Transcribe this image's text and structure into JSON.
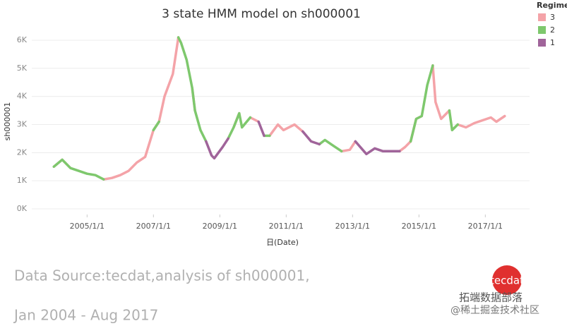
{
  "chart_data": {
    "type": "line",
    "title": "3 state HMM model on sh000001",
    "x_label": "日(Date)",
    "y_label": "sh000001",
    "legend_title": "Regime",
    "legend_position": "top-right",
    "grid": true,
    "x": [
      "2004/1/1",
      "2004/4/1",
      "2004/7/1",
      "2004/10/1",
      "2005/1/1",
      "2005/4/1",
      "2005/7/1",
      "2005/10/1",
      "2006/1/1",
      "2006/4/1",
      "2006/7/1",
      "2006/10/1",
      "2007/1/1",
      "2007/3/1",
      "2007/5/1",
      "2007/8/1",
      "2007/10/1",
      "2007/11/1",
      "2008/1/1",
      "2008/3/1",
      "2008/4/1",
      "2008/6/1",
      "2008/8/1",
      "2008/10/1",
      "2008/11/1",
      "2009/2/1",
      "2009/4/1",
      "2009/6/1",
      "2009/8/1",
      "2009/9/1",
      "2009/12/1",
      "2010/3/1",
      "2010/5/1",
      "2010/7/1",
      "2010/10/1",
      "2010/12/1",
      "2011/4/1",
      "2011/7/1",
      "2011/10/1",
      "2012/1/1",
      "2012/3/1",
      "2012/6/1",
      "2012/9/1",
      "2012/12/1",
      "2013/2/1",
      "2013/6/1",
      "2013/9/1",
      "2013/12/1",
      "2014/3/1",
      "2014/6/1",
      "2014/8/1",
      "2014/10/1",
      "2014/12/1",
      "2015/2/1",
      "2015/4/1",
      "2015/6/1",
      "2015/7/1",
      "2015/9/1",
      "2015/12/1",
      "2016/1/1",
      "2016/3/1",
      "2016/6/1",
      "2016/9/1",
      "2016/12/1",
      "2017/3/1",
      "2017/5/1",
      "2017/8/1"
    ],
    "series": [
      {
        "name": "3",
        "color": "#f4a3a8",
        "values": [
          1500,
          1750,
          1450,
          null,
          null,
          null,
          1050,
          1100,
          1200,
          1350,
          1650,
          1850,
          2800,
          3100,
          4000,
          4800,
          6100,
          null,
          null,
          4300,
          3500,
          null,
          null,
          null,
          null,
          null,
          null,
          2900,
          3400,
          null,
          3250,
          3100,
          null,
          2600,
          3000,
          2800,
          3000,
          2750,
          null,
          null,
          null,
          null,
          2050,
          2100,
          2400,
          null,
          null,
          null,
          null,
          2050,
          2200,
          2400,
          3200,
          3300,
          null,
          5100,
          3800,
          3200,
          3500,
          null,
          3000,
          2900,
          3050,
          3150,
          3250,
          3100,
          3300
        ]
      },
      {
        "name": "2",
        "color": "#7ec86d",
        "values": [
          1500,
          1750,
          1450,
          1350,
          1250,
          1200,
          1050,
          null,
          null,
          null,
          null,
          null,
          2800,
          3100,
          null,
          null,
          6100,
          5900,
          5300,
          4300,
          3500,
          2800,
          2400,
          null,
          null,
          null,
          2500,
          2900,
          3400,
          2900,
          3250,
          null,
          2600,
          2600,
          null,
          null,
          null,
          null,
          null,
          2300,
          2450,
          2250,
          2050,
          null,
          null,
          null,
          null,
          null,
          null,
          null,
          null,
          2400,
          3200,
          3300,
          4400,
          5100,
          null,
          null,
          3500,
          2800,
          3000,
          null,
          null,
          null,
          null,
          null,
          null
        ]
      },
      {
        "name": "1",
        "color": "#a0649a",
        "values": [
          null,
          null,
          null,
          null,
          null,
          null,
          null,
          null,
          null,
          null,
          null,
          null,
          null,
          null,
          null,
          null,
          null,
          null,
          null,
          null,
          null,
          null,
          2400,
          1900,
          1800,
          2200,
          2500,
          null,
          null,
          null,
          null,
          3100,
          2600,
          null,
          null,
          null,
          null,
          2750,
          2400,
          2300,
          null,
          null,
          null,
          null,
          2400,
          1950,
          2150,
          2050,
          2050,
          2050,
          null,
          null,
          null,
          null,
          null,
          null,
          null,
          null,
          null,
          null,
          null,
          null,
          null,
          null,
          null,
          null,
          null
        ]
      }
    ],
    "xlim": [
      "2003/5/1",
      "2018/5/1"
    ],
    "xticks": [
      "2005/1/1",
      "2007/1/1",
      "2009/1/1",
      "2011/1/1",
      "2013/1/1",
      "2015/1/1",
      "2017/1/1"
    ],
    "ylim": [
      0,
      6300
    ],
    "yticks": [
      {
        "value": 0,
        "label": "0K"
      },
      {
        "value": 1000,
        "label": "1K"
      },
      {
        "value": 2000,
        "label": "2K"
      },
      {
        "value": 3000,
        "label": "3K"
      },
      {
        "value": 4000,
        "label": "4K"
      },
      {
        "value": 5000,
        "label": "5K"
      },
      {
        "value": 6000,
        "label": "6K"
      }
    ]
  },
  "footer": {
    "source": "Data Source:tecdat,analysis of sh000001,",
    "period": "Jan 2004 - Aug 2017"
  },
  "logo": {
    "text": "tecdat"
  },
  "watermark": {
    "lines": [
      "拓端数据部落",
      "@稀土掘金技术社区"
    ]
  }
}
